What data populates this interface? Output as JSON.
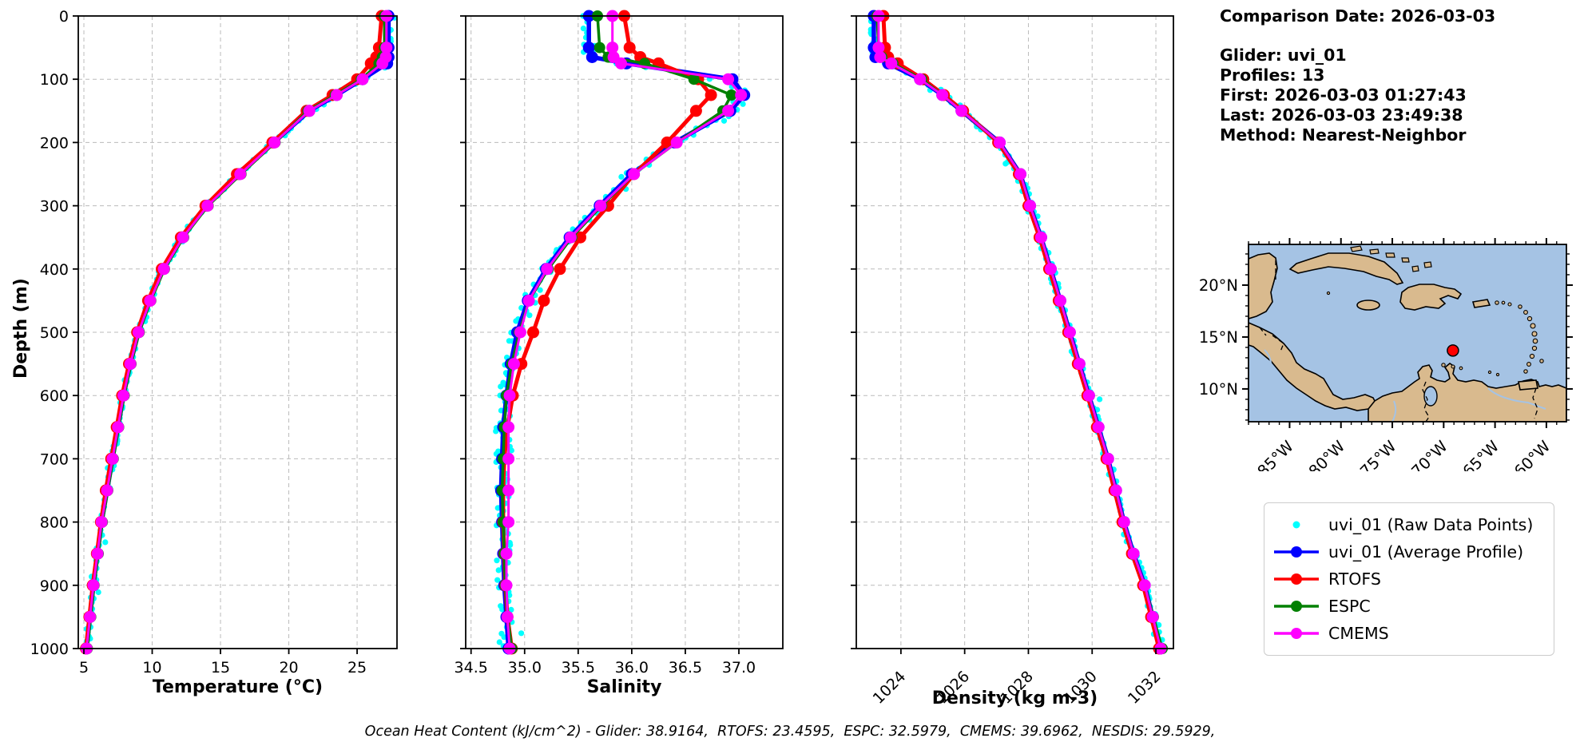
{
  "info_panel": {
    "comparison_date": "Comparison Date: 2026-03-03",
    "glider": "Glider: uvi_01",
    "profiles": "Profiles: 13",
    "first": "First: 2026-03-03 01:27:43",
    "last": "Last: 2026-03-03 23:49:38",
    "method": "Method: Nearest-Neighbor"
  },
  "footer": {
    "ohc_annotation": "Ocean Heat Content (kJ/cm^2) - Glider: 38.9164,  RTOFS: 23.4595,  ESPC: 32.5979,  CMEMS: 39.6962,  NESDIS: 29.5929,"
  },
  "legend": {
    "items": [
      {
        "label": "uvi_01 (Raw Data Points)",
        "color": "#00ffff",
        "marker": "dot"
      },
      {
        "label": "uvi_01 (Average Profile)",
        "color": "#0000ff",
        "marker": "line-dot"
      },
      {
        "label": "RTOFS",
        "color": "#ff0000",
        "marker": "line-dot"
      },
      {
        "label": "ESPC",
        "color": "#008000",
        "marker": "line-dot"
      },
      {
        "label": "CMEMS",
        "color": "#ff00ff",
        "marker": "line-dot"
      }
    ]
  },
  "chart_data": [
    {
      "type": "line",
      "xlabel": "Temperature (°C)",
      "ylabel": "Depth (m)",
      "xlim": [
        4.59,
        27.92
      ],
      "ylim": [
        0,
        1000
      ],
      "y_inverted": true,
      "grid": true,
      "xticks": [
        5,
        10,
        15,
        20,
        25
      ],
      "xtick_labels": [
        "5",
        "10",
        "15",
        "20",
        "25"
      ],
      "xtick_rotation": 0,
      "yticks": [
        0,
        100,
        200,
        300,
        400,
        500,
        600,
        700,
        800,
        900,
        1000
      ],
      "show_ytick_labels": true,
      "raw_jitter": 0.18,
      "depths": [
        0,
        50,
        65,
        75,
        100,
        125,
        150,
        200,
        250,
        300,
        350,
        400,
        450,
        500,
        550,
        600,
        650,
        700,
        750,
        800,
        850,
        900,
        950,
        1000
      ],
      "series": [
        {
          "name": "uvi_01 (Raw Data Points)",
          "color": "#00ffff",
          "style": "raw"
        },
        {
          "name": "uvi_01 (Average Profile)",
          "color": "#0000ff",
          "lw": 5.5,
          "r": 7.5,
          "values": [
            27.3,
            27.3,
            27.3,
            27.2,
            25.4,
            23.5,
            21.5,
            18.9,
            16.4,
            14.0,
            12.2,
            10.8,
            9.8,
            9.0,
            8.4,
            7.9,
            7.5,
            7.1,
            6.7,
            6.3,
            6.0,
            5.7,
            5.45,
            5.2
          ]
        },
        {
          "name": "RTOFS",
          "color": "#ff0000",
          "lw": 5,
          "r": 7.5,
          "values": [
            26.8,
            26.6,
            26.4,
            26.0,
            25.0,
            23.2,
            21.3,
            18.8,
            16.2,
            13.9,
            12.1,
            10.7,
            9.7,
            8.9,
            8.3,
            7.8,
            7.4,
            7.0,
            6.6,
            6.25,
            5.95,
            5.65,
            5.4,
            5.15
          ]
        },
        {
          "name": "ESPC",
          "color": "#008000",
          "lw": 3.5,
          "r": 7,
          "values": [
            27.0,
            27.0,
            26.85,
            26.6,
            25.3,
            23.4,
            21.4,
            19.0,
            16.5,
            14.1,
            12.3,
            10.9,
            9.9,
            9.05,
            8.45,
            7.95,
            7.55,
            7.15,
            6.75,
            6.35,
            6.05,
            5.75,
            5.5,
            5.25
          ]
        },
        {
          "name": "CMEMS",
          "color": "#ff00ff",
          "lw": 3,
          "r": 7.5,
          "values": [
            27.15,
            27.15,
            27.1,
            26.85,
            25.4,
            23.5,
            21.5,
            18.95,
            16.45,
            14.05,
            12.25,
            10.85,
            9.85,
            9.0,
            8.4,
            7.9,
            7.5,
            7.1,
            6.7,
            6.3,
            6.0,
            5.7,
            5.45,
            5.2
          ]
        }
      ]
    },
    {
      "type": "line",
      "xlabel": "Salinity",
      "ylabel": "Depth (m)",
      "xlim": [
        34.45,
        37.41
      ],
      "ylim": [
        0,
        1000
      ],
      "y_inverted": true,
      "grid": true,
      "xticks": [
        34.5,
        35.0,
        35.5,
        36.0,
        36.5,
        37.0
      ],
      "xtick_labels": [
        "34.5",
        "35.0",
        "35.5",
        "36.0",
        "36.5",
        "37.0"
      ],
      "xtick_rotation": 0,
      "yticks": [
        0,
        100,
        200,
        300,
        400,
        500,
        600,
        700,
        800,
        900,
        1000
      ],
      "show_ytick_labels": false,
      "raw_jitter": 0.07,
      "depths": [
        0,
        50,
        65,
        75,
        100,
        125,
        150,
        200,
        250,
        300,
        350,
        400,
        450,
        500,
        550,
        600,
        650,
        700,
        750,
        800,
        850,
        900,
        950,
        1000
      ],
      "series": [
        {
          "name": "uvi_01 (Raw Data Points)",
          "color": "#00ffff",
          "style": "raw"
        },
        {
          "name": "uvi_01 (Average Profile)",
          "color": "#0000ff",
          "lw": 5.5,
          "r": 7.5,
          "values": [
            35.6,
            35.6,
            35.63,
            35.95,
            36.94,
            37.05,
            36.92,
            36.4,
            36.0,
            35.7,
            35.42,
            35.2,
            35.03,
            34.93,
            34.87,
            34.83,
            34.8,
            34.79,
            34.78,
            34.79,
            34.8,
            34.81,
            34.83,
            34.85
          ]
        },
        {
          "name": "RTOFS",
          "color": "#ff0000",
          "lw": 5,
          "r": 7.5,
          "values": [
            35.93,
            35.98,
            36.08,
            36.25,
            36.62,
            36.74,
            36.6,
            36.33,
            36.02,
            35.78,
            35.52,
            35.33,
            35.18,
            35.08,
            34.97,
            34.89,
            34.84,
            34.81,
            34.8,
            34.8,
            34.81,
            34.82,
            34.84,
            34.88
          ]
        },
        {
          "name": "ESPC",
          "color": "#008000",
          "lw": 3.5,
          "r": 7,
          "values": [
            35.68,
            35.7,
            35.78,
            36.12,
            36.58,
            36.93,
            36.85,
            36.42,
            36.02,
            35.72,
            35.44,
            35.22,
            35.04,
            34.95,
            34.88,
            34.83,
            34.81,
            34.8,
            34.79,
            34.8,
            34.81,
            34.82,
            34.84,
            34.88
          ]
        },
        {
          "name": "CMEMS",
          "color": "#ff00ff",
          "lw": 3,
          "r": 7.5,
          "values": [
            35.82,
            35.82,
            35.83,
            35.9,
            36.9,
            37.02,
            36.9,
            36.42,
            36.02,
            35.71,
            35.43,
            35.21,
            35.04,
            34.96,
            34.9,
            34.86,
            34.85,
            34.85,
            34.85,
            34.85,
            34.83,
            34.83,
            34.84,
            34.86
          ]
        }
      ]
    },
    {
      "type": "line",
      "xlabel": "Density (kg m-3)",
      "ylabel": "Depth (m)",
      "xlim": [
        1022.6,
        1032.55
      ],
      "ylim": [
        0,
        1000
      ],
      "y_inverted": true,
      "grid": true,
      "xticks": [
        1024,
        1026,
        1028,
        1030,
        1032
      ],
      "xtick_labels": [
        "1024",
        "1026",
        "1028",
        "1030",
        "1032"
      ],
      "xtick_rotation": -45,
      "yticks": [
        0,
        100,
        200,
        300,
        400,
        500,
        600,
        700,
        800,
        900,
        1000
      ],
      "show_ytick_labels": false,
      "raw_jitter": 0.12,
      "depths": [
        0,
        50,
        65,
        75,
        100,
        125,
        150,
        200,
        250,
        300,
        350,
        400,
        450,
        500,
        550,
        600,
        650,
        700,
        750,
        800,
        850,
        900,
        950,
        1000
      ],
      "series": [
        {
          "name": "uvi_01 (Raw Data Points)",
          "color": "#00ffff",
          "style": "raw"
        },
        {
          "name": "uvi_01 (Average Profile)",
          "color": "#0000ff",
          "lw": 5.5,
          "r": 7.5,
          "values": [
            1023.15,
            1023.15,
            1023.2,
            1023.6,
            1024.6,
            1025.3,
            1025.9,
            1027.1,
            1027.75,
            1028.05,
            1028.4,
            1028.7,
            1029.0,
            1029.3,
            1029.6,
            1029.9,
            1030.2,
            1030.5,
            1030.75,
            1031.0,
            1031.3,
            1031.65,
            1031.9,
            1032.15
          ]
        },
        {
          "name": "RTOFS",
          "color": "#ff0000",
          "lw": 5,
          "r": 7.5,
          "values": [
            1023.45,
            1023.5,
            1023.6,
            1023.9,
            1024.7,
            1025.35,
            1025.95,
            1027.05,
            1027.7,
            1028.0,
            1028.35,
            1028.65,
            1028.95,
            1029.25,
            1029.55,
            1029.85,
            1030.15,
            1030.45,
            1030.7,
            1030.95,
            1031.25,
            1031.6,
            1031.85,
            1032.1
          ]
        },
        {
          "name": "ESPC",
          "color": "#008000",
          "lw": 3.5,
          "r": 7,
          "values": [
            1023.25,
            1023.3,
            1023.4,
            1023.75,
            1024.65,
            1025.3,
            1025.9,
            1027.1,
            1027.75,
            1028.05,
            1028.4,
            1028.7,
            1029.0,
            1029.3,
            1029.6,
            1029.9,
            1030.2,
            1030.5,
            1030.75,
            1031.0,
            1031.3,
            1031.65,
            1031.92,
            1032.2
          ]
        },
        {
          "name": "CMEMS",
          "color": "#ff00ff",
          "lw": 3,
          "r": 7.5,
          "values": [
            1023.3,
            1023.3,
            1023.35,
            1023.7,
            1024.6,
            1025.3,
            1025.9,
            1027.1,
            1027.75,
            1028.05,
            1028.4,
            1028.7,
            1029.0,
            1029.3,
            1029.6,
            1029.9,
            1030.2,
            1030.5,
            1030.75,
            1031.0,
            1031.3,
            1031.65,
            1031.9,
            1032.15
          ]
        }
      ]
    }
  ],
  "map": {
    "extent": {
      "west": 89.0,
      "east": 58.05,
      "south": 6.84,
      "north": 23.92
    },
    "lon_ticks": [
      {
        "label": "85°W",
        "lon": 85
      },
      {
        "label": "80°W",
        "lon": 80
      },
      {
        "label": "75°W",
        "lon": 75
      },
      {
        "label": "70°W",
        "lon": 70
      },
      {
        "label": "65°W",
        "lon": 65
      },
      {
        "label": "60°W",
        "lon": 60
      }
    ],
    "lat_ticks": [
      {
        "label": "20°N",
        "lat": 20
      },
      {
        "label": "15°N",
        "lat": 15
      },
      {
        "label": "10°N",
        "lat": 10
      }
    ],
    "glider_position": {
      "lat": 13.7,
      "lon": 69.1
    },
    "colors": {
      "land": "#d9ba8e",
      "water": "#a5c3e4",
      "river": "#a5c3e4",
      "dot": "#ff0000",
      "coast": "#000000"
    }
  }
}
